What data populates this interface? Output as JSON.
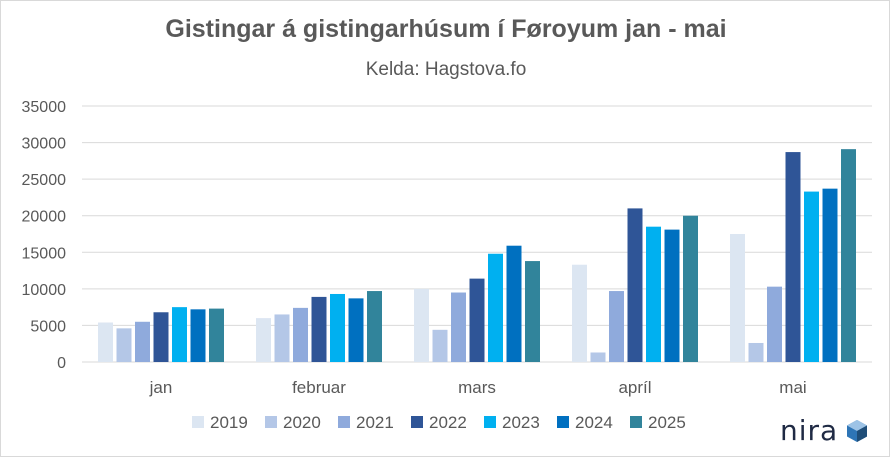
{
  "chart_data": {
    "type": "bar",
    "title": "Gistingar á gistingarhúsum í Føroyum jan - mai",
    "subtitle": "Kelda: Hagstova.fo",
    "categories": [
      "jan",
      "februar",
      "mars",
      "apríl",
      "mai"
    ],
    "ylim": [
      0,
      35000
    ],
    "yticks": [
      "35000",
      "30000",
      "25000",
      "20000",
      "15000",
      "10000",
      "5000",
      "0"
    ],
    "ytick_values": [
      35000,
      30000,
      25000,
      20000,
      15000,
      10000,
      5000,
      0
    ],
    "grid": true,
    "legend_position": "bottom",
    "series": [
      {
        "name": "2019",
        "color": "#dce6f2",
        "values": [
          5400,
          6000,
          10000,
          13300,
          17500
        ]
      },
      {
        "name": "2020",
        "color": "#b4c7e7",
        "values": [
          4600,
          6500,
          4400,
          1300,
          2600
        ]
      },
      {
        "name": "2021",
        "color": "#8faadc",
        "values": [
          5500,
          7400,
          9500,
          9700,
          10300
        ]
      },
      {
        "name": "2022",
        "color": "#2f5597",
        "values": [
          6800,
          8900,
          11400,
          21000,
          28700
        ]
      },
      {
        "name": "2023",
        "color": "#00b0f0",
        "values": [
          7500,
          9300,
          14800,
          18500,
          23300
        ]
      },
      {
        "name": "2024",
        "color": "#0070c0",
        "values": [
          7200,
          8700,
          15900,
          18100,
          23700
        ]
      },
      {
        "name": "2025",
        "color": "#31849b",
        "values": [
          7300,
          9700,
          13800,
          20000,
          29100
        ]
      }
    ]
  },
  "brand": {
    "name": "nira",
    "icon": "cube-icon",
    "color": "#1f2a44",
    "accent": "#2e75b6"
  }
}
